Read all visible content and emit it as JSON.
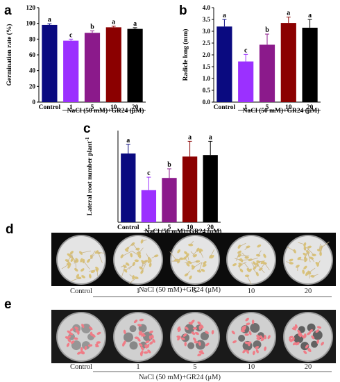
{
  "panels": {
    "a": "a",
    "b": "b",
    "c": "c",
    "d": "d",
    "e": "e"
  },
  "treatment_label": "NaCl (50 mM)+GR24 (μM)",
  "chart_data": [
    {
      "panel": "a",
      "type": "bar",
      "categories": [
        "Control",
        "1",
        "5",
        "10",
        "20"
      ],
      "values": [
        98,
        78,
        88,
        95,
        93
      ],
      "errors": [
        1.5,
        2,
        2.5,
        1.5,
        1.5
      ],
      "significance": [
        "a",
        "c",
        "b",
        "a",
        "a"
      ],
      "colors": [
        "#0a0a80",
        "#9b30ff",
        "#8b1a8b",
        "#8b0000",
        "#000000"
      ],
      "ylabel": "Germination rate (%)",
      "xlabel": "NaCl (50 mM)+GR24 (μM)",
      "ylim": [
        0,
        120
      ],
      "yticks": [
        "0",
        "20",
        "40",
        "60",
        "80",
        "100",
        "120"
      ],
      "grid": false
    },
    {
      "panel": "b",
      "type": "bar",
      "categories": [
        "Control",
        "1",
        "5",
        "10",
        "20"
      ],
      "values": [
        3.2,
        1.72,
        2.43,
        3.35,
        3.15
      ],
      "errors": [
        0.3,
        0.3,
        0.45,
        0.25,
        0.35
      ],
      "significance": [
        "a",
        "c",
        "b",
        "a",
        "a"
      ],
      "colors": [
        "#0a0a80",
        "#9b30ff",
        "#8b1a8b",
        "#8b0000",
        "#000000"
      ],
      "ylabel": "Radicle long (mm)",
      "xlabel": "NaCl (50 mM)+GR24 (μM)",
      "ylim": [
        0,
        4
      ],
      "yticks": [
        "0.0",
        "0.5",
        "1.0",
        "1.5",
        "2.0",
        "2.5",
        "3.0",
        "3.5",
        "4.0"
      ],
      "grid": false
    },
    {
      "panel": "c",
      "type": "bar",
      "categories": [
        "Control",
        "1",
        "5",
        "10",
        "20"
      ],
      "values": [
        4.5,
        2.1,
        2.9,
        4.3,
        4.4
      ],
      "errors": [
        0.6,
        0.85,
        0.6,
        1.0,
        0.9
      ],
      "significance": [
        "a",
        "c",
        "b",
        "a",
        "a"
      ],
      "colors": [
        "#0a0a80",
        "#9b30ff",
        "#8b1a8b",
        "#8b0000",
        "#000000"
      ],
      "ylabel": "Lateral root number plant",
      "ylabel_sup": "-1",
      "xlabel": "NaCl (50 mM)+GR24 (μM)",
      "ylim": [
        0,
        6
      ],
      "grid": false
    }
  ],
  "photos": {
    "d": {
      "labels": [
        "Control",
        "1",
        "5",
        "10",
        "20"
      ],
      "caption": "NaCl (50 mM)+GR24 (μM)",
      "background": "#0c0c0c"
    },
    "e": {
      "labels": [
        "Control",
        "1",
        "5",
        "10",
        "20"
      ],
      "caption": "NaCl (50 mM)+GR24 (μM)",
      "background": "#1a1a1a"
    }
  }
}
